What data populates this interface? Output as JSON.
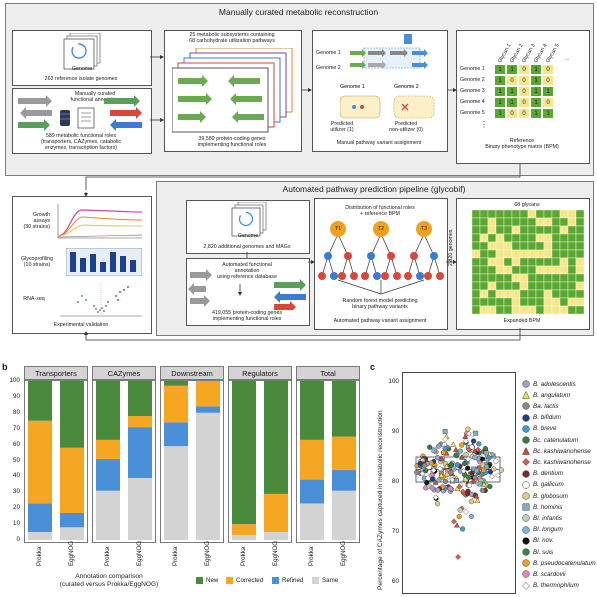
{
  "panel_a": {
    "top_title": "Manually curated metabolic reconstruction",
    "genome_label": "Genome",
    "reference_genomes": "263 reference isolate genomes",
    "manual_annotation": [
      "Manually curated",
      "functional annotation"
    ],
    "functional_roles": [
      "589 metabolic functional roles",
      "(transporters, CAZymes, catabolic",
      "enzymes, transcription factors)"
    ],
    "subsystems": [
      "25 metabolic subsystems containing",
      "68 carbohydrate utilization pathways"
    ],
    "protein_genes": [
      "39,589 protein-coding genes",
      "implementing functional roles"
    ],
    "genome_1": "Genome 1",
    "genome_2": "Genome 2",
    "predicted_utilizer": [
      "Predicted",
      "utilizer (1)"
    ],
    "predicted_nonutilizer": [
      "Predicted",
      "non-utilizer (0)"
    ],
    "manual_variant": "Manual pathway variant assignment",
    "glycan_headers": [
      "Glycan 1",
      "Glycan 2",
      "Glycan 3",
      "Glycan 4",
      "Glycan 5"
    ],
    "genome_rows": [
      "Genome 1",
      "Genome 2",
      "Genome 3",
      "Genome 4",
      "Genome 5"
    ],
    "matrix": [
      [
        1,
        1,
        0,
        1,
        0
      ],
      [
        1,
        0,
        0,
        1,
        0
      ],
      [
        1,
        1,
        0,
        1,
        1
      ],
      [
        1,
        1,
        0,
        1,
        0
      ],
      [
        1,
        0,
        0,
        1,
        1
      ]
    ],
    "ellipsis": "...",
    "vellipsis": "⋮",
    "reference_bpm": [
      "Reference",
      "Binary phenotype matrix (BPM)"
    ],
    "auto_title": "Automated pathway prediction pipeline (glycobif)",
    "growth_assays": [
      "Growth",
      "assays",
      "(30 strains)"
    ],
    "glycoprofiling": [
      "Glycoprofiling",
      "(10 strains)"
    ],
    "rnaseq": "RNA-seq",
    "exp_validation": "Experimental validation",
    "additional_genomes": "2,820 additional genomes and MAGs",
    "auto_annotation": [
      "Automated functional",
      "annotation",
      "using reference database"
    ],
    "auto_genes": [
      "419,055 protein-coding genes",
      "implementing functional roles"
    ],
    "distribution": [
      "Distribution of functional roles",
      "+ reference BPM"
    ],
    "trees": [
      "T1",
      "T2",
      "T3"
    ],
    "random_forest": [
      "Random forest model predicting",
      "binary pathway variants"
    ],
    "auto_variant": "Automated pathway variant assignment",
    "glycans_68": "68 glycans",
    "genomes_2820": "2,820 genomes",
    "expanded_bpm": "Expanded BPM"
  },
  "panel_b": {
    "label": "b",
    "facets": [
      "Transporters",
      "CAZymes",
      "Downstream",
      "Regulators",
      "Total"
    ],
    "yticks": [
      "100",
      "90",
      "80",
      "70",
      "60",
      "50",
      "40",
      "30",
      "20",
      "10",
      "0"
    ],
    "xcats": [
      "Prokka",
      "EggNOG"
    ],
    "x_axis_title": [
      "Annotation comparison",
      "(curated versus Prokka/EggNOG)"
    ],
    "legend": [
      {
        "name": "New",
        "color": "#4a8a3c"
      },
      {
        "name": "Corrected",
        "color": "#f5a623"
      },
      {
        "name": "Refined",
        "color": "#4a90d9"
      },
      {
        "name": "Same",
        "color": "#d3d3d3"
      }
    ]
  },
  "chart_data": [
    {
      "type": "bar",
      "stacked": true,
      "facets": [
        "Transporters",
        "CAZymes",
        "Downstream",
        "Regulators",
        "Total"
      ],
      "categories": [
        "Prokka",
        "EggNOG"
      ],
      "ylim": [
        0,
        100
      ],
      "xlabel": "Annotation comparison (curated versus Prokka/EggNOG)",
      "series_order": [
        "Same",
        "Refined",
        "Corrected",
        "New"
      ],
      "data": {
        "Transporters": {
          "Prokka": {
            "Same": 5,
            "Refined": 18,
            "Corrected": 52,
            "New": 25
          },
          "EggNOG": {
            "Same": 8,
            "Refined": 9,
            "Corrected": 41,
            "New": 42
          }
        },
        "CAZymes": {
          "Prokka": {
            "Same": 31,
            "Refined": 20,
            "Corrected": 12,
            "New": 37
          },
          "EggNOG": {
            "Same": 39,
            "Refined": 32,
            "Corrected": 7,
            "New": 22
          }
        },
        "Downstream": {
          "Prokka": {
            "Same": 59,
            "Refined": 15,
            "Corrected": 23,
            "New": 3
          },
          "EggNOG": {
            "Same": 80,
            "Refined": 4,
            "Corrected": 16,
            "New": 0
          }
        },
        "Regulators": {
          "Prokka": {
            "Same": 3,
            "Refined": 0,
            "Corrected": 7,
            "New": 90
          },
          "EggNOG": {
            "Same": 5,
            "Refined": 0,
            "Corrected": 24,
            "New": 71
          }
        },
        "Total": {
          "Prokka": {
            "Same": 23,
            "Refined": 15,
            "Corrected": 25,
            "New": 37
          },
          "EggNOG": {
            "Same": 31,
            "Refined": 13,
            "Corrected": 21,
            "New": 35
          }
        }
      }
    },
    {
      "type": "scatter",
      "ylabel": "Percentage of CAZymes captured in metabolic reconstruction",
      "ylim": [
        58,
        102
      ],
      "yticks": [
        60,
        70,
        80,
        90,
        100
      ],
      "box": {
        "q1": 80,
        "median": 82.5,
        "q3": 85
      }
    }
  ],
  "panel_c": {
    "label": "c",
    "ylabel": "Percentage of CAZymes captured in metabolic reconstruction",
    "yticks": [
      "100",
      "90",
      "80",
      "70",
      "60"
    ],
    "species": [
      {
        "name": "B. adolescentis",
        "shape": "circle",
        "color": "#9aa6c8"
      },
      {
        "name": "B. angulatum",
        "shape": "triangle",
        "color": "#f2e34a"
      },
      {
        "name": "Ba. lactis",
        "shape": "circle",
        "color": "#8a8a8a"
      },
      {
        "name": "B. bifidum",
        "shape": "circle",
        "color": "#1d3f8f"
      },
      {
        "name": "B. breve",
        "shape": "circle",
        "color": "#3a9bd5"
      },
      {
        "name": "Bc. catenulatum",
        "shape": "circle",
        "color": "#3c7a3c"
      },
      {
        "name": "Bc. kashiwanohense",
        "shape": "triangle",
        "color": "#d9463a"
      },
      {
        "name": "Bc. kashiwanohense",
        "shape": "diamond",
        "color": "#e25a4c"
      },
      {
        "name": "B. dentium",
        "shape": "circle",
        "color": "#7a2a2a"
      },
      {
        "name": "B. gallicum",
        "shape": "circle",
        "color": "#ffffff"
      },
      {
        "name": "B. globosum",
        "shape": "circle",
        "color": "#e8c882"
      },
      {
        "name": "B. hominis",
        "shape": "square",
        "color": "#7fb0c8"
      },
      {
        "name": "Bl. infantis",
        "shape": "circle",
        "color": "#b8d8a8"
      },
      {
        "name": "Bl. longum",
        "shape": "circle",
        "color": "#7fb0e0"
      },
      {
        "name": "Bl. nov.",
        "shape": "circle",
        "color": "#111111"
      },
      {
        "name": "Bl. suis",
        "shape": "circle",
        "color": "#2f8a4a"
      },
      {
        "name": "B. pseudocatenulatum",
        "shape": "circle",
        "color": "#f0a020"
      },
      {
        "name": "B. scardovii",
        "shape": "circle",
        "color": "#e888b8"
      },
      {
        "name": "B. thermophilum",
        "shape": "diamond",
        "color": "#ffffff"
      }
    ]
  }
}
